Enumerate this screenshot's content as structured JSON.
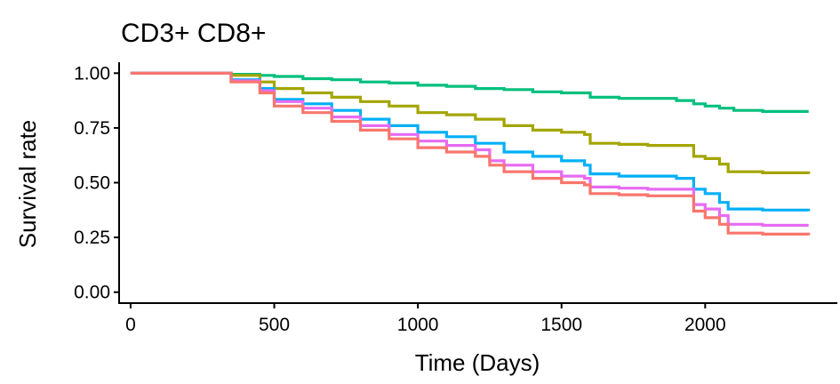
{
  "chart_data": {
    "type": "line",
    "title": "CD3+ CD8+",
    "xlabel": "Time (Days)",
    "ylabel": "Survival rate",
    "xlim": [
      -40,
      2460
    ],
    "ylim": [
      -0.05,
      1.05
    ],
    "x_ticks": [
      {
        "value": 0,
        "label": "0"
      },
      {
        "value": 500,
        "label": "500"
      },
      {
        "value": 1000,
        "label": "1000"
      },
      {
        "value": 1500,
        "label": "1500"
      },
      {
        "value": 2000,
        "label": "2000"
      }
    ],
    "y_ticks": [
      {
        "value": 0,
        "label": "0.00"
      },
      {
        "value": 0.25,
        "label": "0.25"
      },
      {
        "value": 0.5,
        "label": "0.50"
      },
      {
        "value": 0.75,
        "label": "0.75"
      },
      {
        "value": 1,
        "label": "1.00"
      }
    ],
    "grid": false,
    "legend": "none",
    "series": [
      {
        "color": "#00BF7D",
        "points": [
          [
            0,
            1.0
          ],
          [
            250,
            1.0
          ],
          [
            350,
            0.995
          ],
          [
            450,
            0.99
          ],
          [
            500,
            0.985
          ],
          [
            600,
            0.975
          ],
          [
            700,
            0.97
          ],
          [
            800,
            0.96
          ],
          [
            900,
            0.955
          ],
          [
            1000,
            0.945
          ],
          [
            1100,
            0.94
          ],
          [
            1200,
            0.93
          ],
          [
            1300,
            0.925
          ],
          [
            1400,
            0.915
          ],
          [
            1500,
            0.91
          ],
          [
            1600,
            0.89
          ],
          [
            1700,
            0.885
          ],
          [
            1800,
            0.885
          ],
          [
            1900,
            0.875
          ],
          [
            1960,
            0.86
          ],
          [
            2000,
            0.85
          ],
          [
            2050,
            0.84
          ],
          [
            2100,
            0.83
          ],
          [
            2200,
            0.825
          ],
          [
            2360,
            0.825
          ]
        ]
      },
      {
        "color": "#A3A500",
        "points": [
          [
            0,
            1.0
          ],
          [
            250,
            1.0
          ],
          [
            350,
            0.99
          ],
          [
            450,
            0.96
          ],
          [
            500,
            0.93
          ],
          [
            600,
            0.91
          ],
          [
            700,
            0.89
          ],
          [
            800,
            0.87
          ],
          [
            900,
            0.85
          ],
          [
            1000,
            0.82
          ],
          [
            1100,
            0.81
          ],
          [
            1200,
            0.79
          ],
          [
            1300,
            0.76
          ],
          [
            1400,
            0.74
          ],
          [
            1500,
            0.73
          ],
          [
            1580,
            0.72
          ],
          [
            1600,
            0.68
          ],
          [
            1700,
            0.675
          ],
          [
            1800,
            0.67
          ],
          [
            1900,
            0.67
          ],
          [
            1960,
            0.62
          ],
          [
            2000,
            0.61
          ],
          [
            2050,
            0.585
          ],
          [
            2080,
            0.55
          ],
          [
            2200,
            0.545
          ],
          [
            2360,
            0.54
          ]
        ]
      },
      {
        "color": "#00B0F6",
        "points": [
          [
            0,
            1.0
          ],
          [
            250,
            1.0
          ],
          [
            350,
            0.97
          ],
          [
            450,
            0.93
          ],
          [
            500,
            0.88
          ],
          [
            600,
            0.86
          ],
          [
            700,
            0.83
          ],
          [
            800,
            0.79
          ],
          [
            900,
            0.76
          ],
          [
            1000,
            0.73
          ],
          [
            1100,
            0.71
          ],
          [
            1200,
            0.68
          ],
          [
            1300,
            0.64
          ],
          [
            1400,
            0.62
          ],
          [
            1500,
            0.6
          ],
          [
            1580,
            0.58
          ],
          [
            1600,
            0.54
          ],
          [
            1700,
            0.53
          ],
          [
            1800,
            0.53
          ],
          [
            1900,
            0.52
          ],
          [
            1960,
            0.47
          ],
          [
            2000,
            0.45
          ],
          [
            2050,
            0.41
          ],
          [
            2080,
            0.38
          ],
          [
            2200,
            0.375
          ],
          [
            2360,
            0.37
          ]
        ]
      },
      {
        "color": "#E76BF3",
        "points": [
          [
            0,
            1.0
          ],
          [
            250,
            1.0
          ],
          [
            350,
            0.965
          ],
          [
            450,
            0.92
          ],
          [
            500,
            0.87
          ],
          [
            600,
            0.84
          ],
          [
            700,
            0.8
          ],
          [
            800,
            0.76
          ],
          [
            900,
            0.72
          ],
          [
            1000,
            0.69
          ],
          [
            1100,
            0.67
          ],
          [
            1200,
            0.65
          ],
          [
            1250,
            0.6
          ],
          [
            1300,
            0.58
          ],
          [
            1400,
            0.55
          ],
          [
            1500,
            0.53
          ],
          [
            1580,
            0.52
          ],
          [
            1600,
            0.48
          ],
          [
            1700,
            0.475
          ],
          [
            1800,
            0.47
          ],
          [
            1900,
            0.47
          ],
          [
            1960,
            0.4
          ],
          [
            2000,
            0.38
          ],
          [
            2050,
            0.35
          ],
          [
            2080,
            0.31
          ],
          [
            2200,
            0.305
          ],
          [
            2360,
            0.305
          ]
        ]
      },
      {
        "color": "#F8766D",
        "points": [
          [
            0,
            1.0
          ],
          [
            250,
            1.0
          ],
          [
            350,
            0.96
          ],
          [
            450,
            0.91
          ],
          [
            500,
            0.85
          ],
          [
            600,
            0.82
          ],
          [
            700,
            0.78
          ],
          [
            800,
            0.74
          ],
          [
            900,
            0.7
          ],
          [
            1000,
            0.66
          ],
          [
            1100,
            0.64
          ],
          [
            1200,
            0.62
          ],
          [
            1250,
            0.58
          ],
          [
            1300,
            0.55
          ],
          [
            1400,
            0.52
          ],
          [
            1500,
            0.5
          ],
          [
            1580,
            0.49
          ],
          [
            1600,
            0.45
          ],
          [
            1700,
            0.445
          ],
          [
            1800,
            0.44
          ],
          [
            1900,
            0.44
          ],
          [
            1960,
            0.37
          ],
          [
            2000,
            0.34
          ],
          [
            2050,
            0.31
          ],
          [
            2080,
            0.27
          ],
          [
            2200,
            0.265
          ],
          [
            2360,
            0.26
          ]
        ]
      }
    ]
  }
}
